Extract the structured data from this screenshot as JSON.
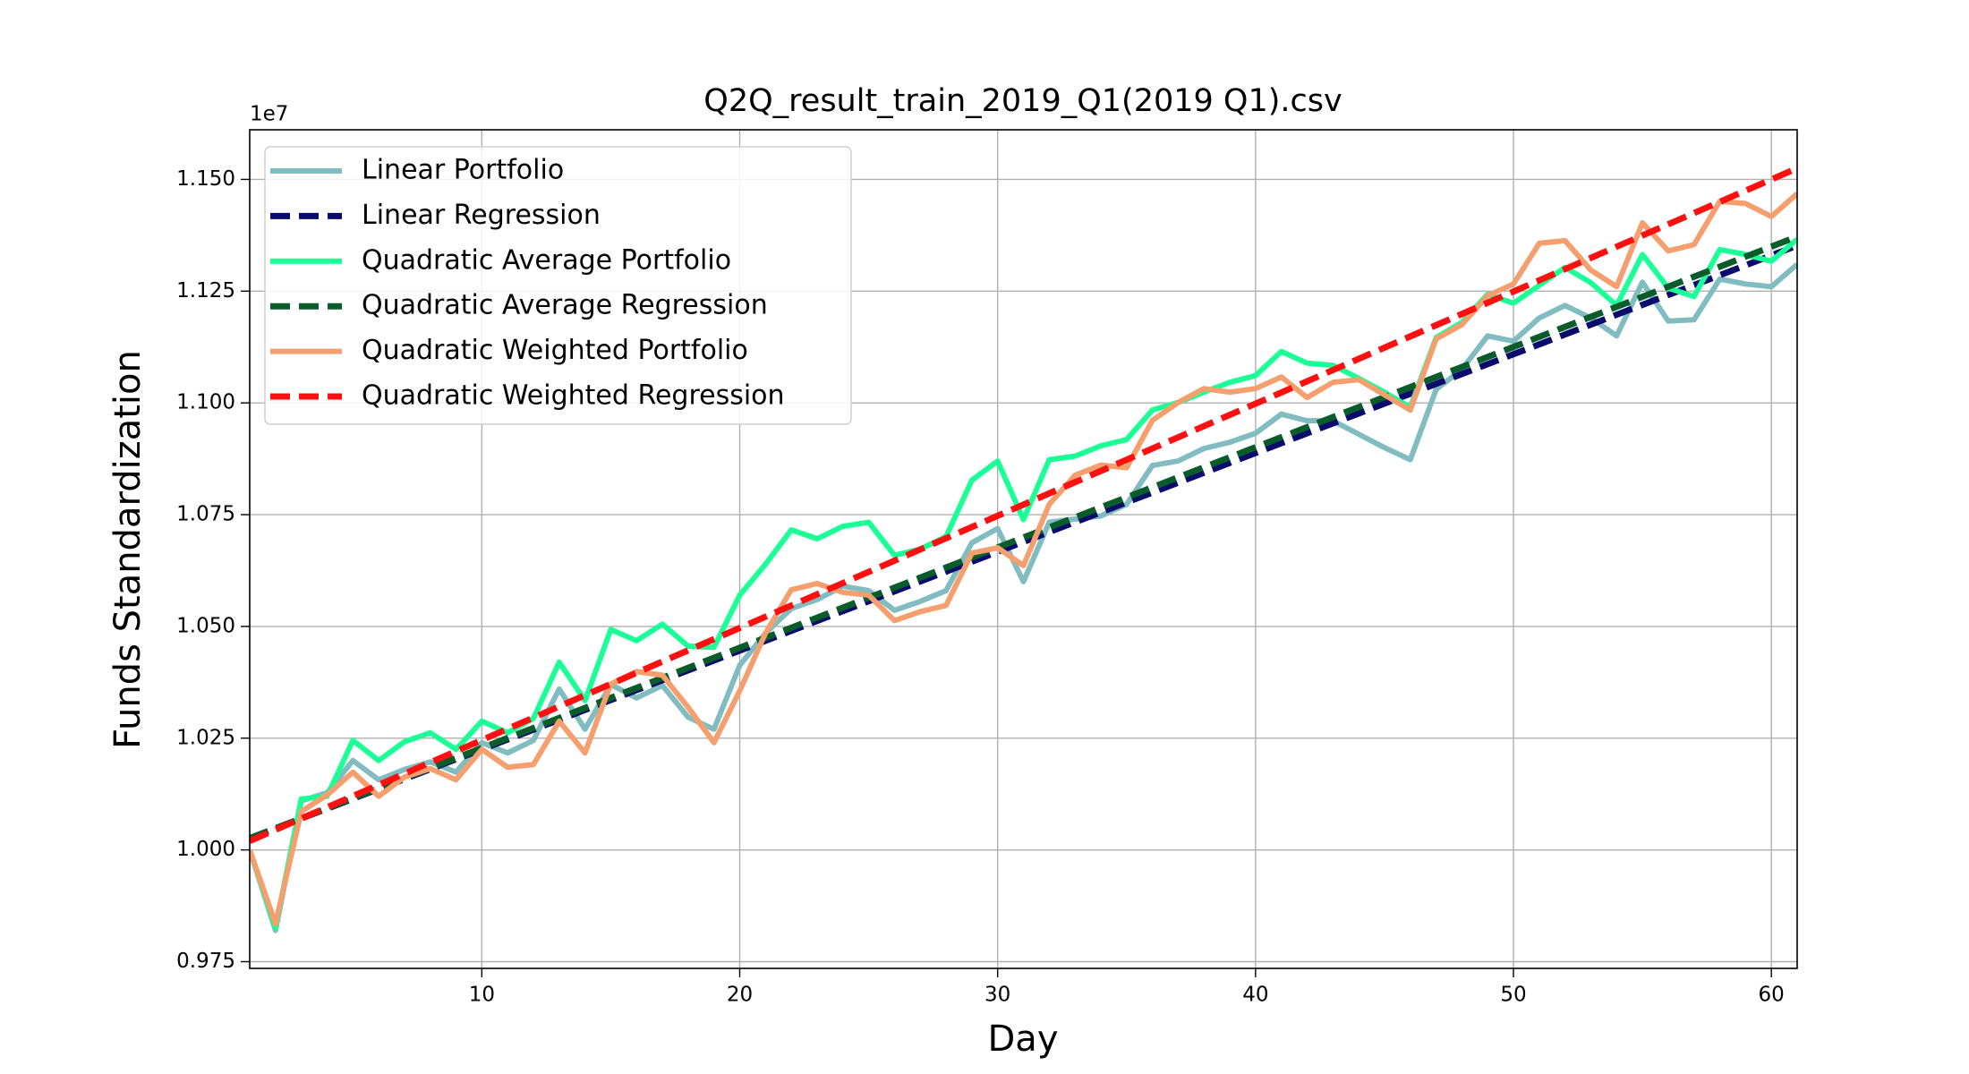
{
  "chart_data": {
    "type": "line",
    "title": "Q2Q_result_train_2019_Q1(2019 Q1).csv",
    "xlabel": "Day",
    "ylabel": "Funds Standardization",
    "y_offset_label": "1e7",
    "x": [
      1,
      2,
      3,
      4,
      5,
      6,
      7,
      8,
      9,
      10,
      11,
      12,
      13,
      14,
      15,
      16,
      17,
      18,
      19,
      20,
      21,
      22,
      23,
      24,
      25,
      26,
      27,
      28,
      29,
      30,
      31,
      32,
      33,
      34,
      35,
      36,
      37,
      38,
      39,
      40,
      41,
      42,
      43,
      44,
      45,
      46,
      47,
      48,
      49,
      50,
      51,
      52,
      53,
      54,
      55,
      56,
      57,
      58,
      59,
      60,
      61
    ],
    "xlim": [
      1,
      61
    ],
    "xticks": [
      10,
      20,
      30,
      40,
      50,
      60
    ],
    "ylim": [
      0.9735,
      1.1611
    ],
    "yticks": [
      {
        "value": 0.975,
        "label": "0.975"
      },
      {
        "value": 1.0,
        "label": "1.000"
      },
      {
        "value": 1.025,
        "label": "1.025"
      },
      {
        "value": 1.05,
        "label": "1.050"
      },
      {
        "value": 1.075,
        "label": "1.075"
      },
      {
        "value": 1.1,
        "label": "1.100"
      },
      {
        "value": 1.125,
        "label": "1.125"
      },
      {
        "value": 1.15,
        "label": "1.150"
      }
    ],
    "grid": true,
    "legend": "upper left",
    "series": [
      {
        "name": "Linear Portfolio",
        "color": "#80bcc0",
        "dashed": false,
        "values": [
          1.0,
          0.982,
          1.011,
          1.0128,
          1.02,
          1.0157,
          1.018,
          1.0197,
          1.0174,
          1.024,
          1.0217,
          1.0245,
          1.036,
          1.027,
          1.037,
          1.034,
          1.0368,
          1.0297,
          1.027,
          1.0413,
          1.0485,
          1.054,
          1.056,
          1.059,
          1.058,
          1.0536,
          1.0556,
          1.058,
          1.0687,
          1.0719,
          1.06,
          1.0733,
          1.074,
          1.0747,
          1.0773,
          1.086,
          1.087,
          1.0898,
          1.0912,
          1.0932,
          1.0975,
          1.096,
          1.096,
          1.093,
          1.09,
          1.0873,
          1.103,
          1.1075,
          1.115,
          1.1138,
          1.119,
          1.1218,
          1.119,
          1.115,
          1.127,
          1.1183,
          1.1186,
          1.1277,
          1.1266,
          1.126,
          1.131
        ]
      },
      {
        "name": "Linear Regression",
        "color": "#0b0b6e",
        "dashed": true,
        "x": [
          1,
          61
        ],
        "values": [
          1.0026,
          1.1352
        ]
      },
      {
        "name": "Quadratic Average Portfolio",
        "color": "#1aff96",
        "dashed": false,
        "values": [
          1.0,
          0.9826,
          1.0114,
          1.012,
          1.0245,
          1.02,
          1.0242,
          1.0262,
          1.0225,
          1.0288,
          1.0262,
          1.0294,
          1.042,
          1.0334,
          1.0493,
          1.0468,
          1.0505,
          1.0456,
          1.0453,
          1.057,
          1.0639,
          1.0716,
          1.0696,
          1.0724,
          1.0733,
          1.0659,
          1.0673,
          1.0701,
          1.0827,
          1.087,
          1.0739,
          1.0873,
          1.0881,
          1.0904,
          1.0918,
          1.0984,
          1.1001,
          1.1024,
          1.1046,
          1.1061,
          1.1115,
          1.1089,
          1.1084,
          1.1055,
          1.1024,
          1.099,
          1.1146,
          1.118,
          1.1243,
          1.1223,
          1.1263,
          1.1303,
          1.1269,
          1.1218,
          1.1332,
          1.1257,
          1.1238,
          1.1343,
          1.1332,
          1.1317,
          1.1366
        ]
      },
      {
        "name": "Quadratic Average Regression",
        "color": "#0a5c2a",
        "dashed": true,
        "x": [
          1,
          61
        ],
        "values": [
          1.0026,
          1.1372
        ]
      },
      {
        "name": "Quadratic Weighted Portfolio",
        "color": "#f59e6e",
        "dashed": false,
        "values": [
          1.0,
          0.9835,
          1.0086,
          1.0123,
          1.0174,
          1.012,
          1.0163,
          1.0182,
          1.0157,
          1.0225,
          1.0185,
          1.0191,
          1.0288,
          1.0217,
          1.0371,
          1.0399,
          1.0391,
          1.0319,
          1.024,
          1.0356,
          1.0485,
          1.0582,
          1.0596,
          1.0576,
          1.057,
          1.0513,
          1.0533,
          1.0547,
          1.0664,
          1.0676,
          1.0636,
          1.0773,
          1.0838,
          1.0861,
          1.0855,
          1.0961,
          1.1001,
          1.1032,
          1.1024,
          1.1032,
          1.1058,
          1.1012,
          1.1046,
          1.1052,
          1.1018,
          1.0984,
          1.1143,
          1.1175,
          1.124,
          1.1266,
          1.1357,
          1.1363,
          1.1297,
          1.126,
          1.1403,
          1.134,
          1.1354,
          1.1451,
          1.1446,
          1.1417,
          1.1468
        ]
      },
      {
        "name": "Quadratic Weighted Regression",
        "color": "#ff1010",
        "dashed": true,
        "x": [
          1,
          61
        ],
        "values": [
          1.002,
          1.1525
        ]
      }
    ]
  }
}
